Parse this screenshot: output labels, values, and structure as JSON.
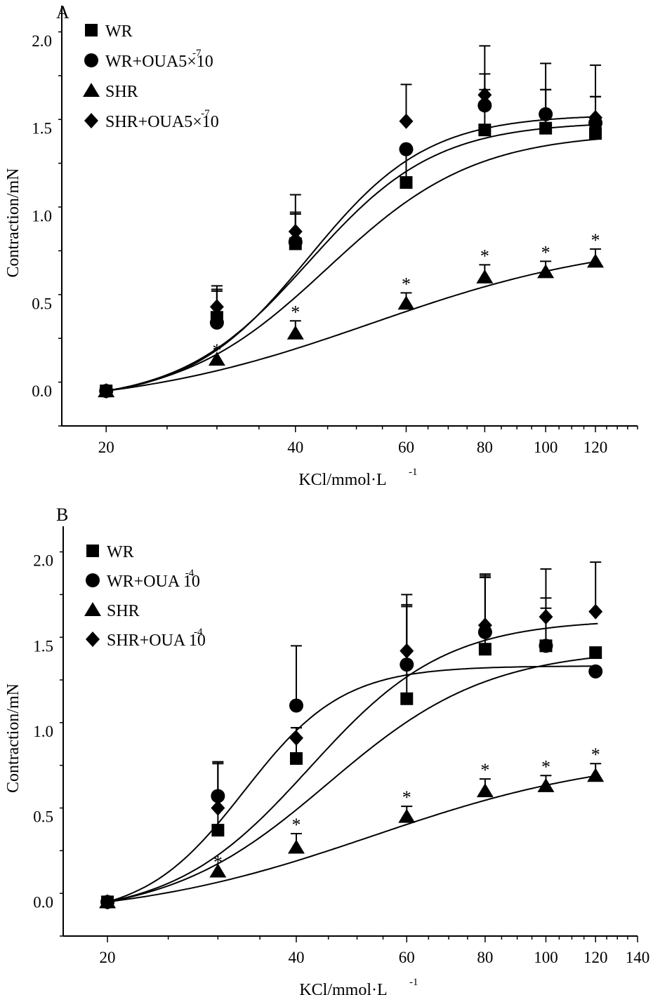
{
  "chart_data": [
    {
      "panel": "A",
      "type": "scatter",
      "xscale": "log",
      "xlabel": "KCl/mmol·L",
      "xlabel_sup": "-1",
      "ylabel": "Contraction/mN",
      "xlim": [
        17,
        140
      ],
      "ylim": [
        -0.2,
        2.2
      ],
      "xticks": [
        20,
        40,
        60,
        80,
        100,
        120
      ],
      "xtick_labels": [
        "20",
        "40",
        "60",
        "80",
        "100",
        "120"
      ],
      "yticks": [
        0.0,
        0.5,
        1.0,
        1.5,
        2.0
      ],
      "ytick_labels": [
        "0.0",
        "0.5",
        "1.0",
        "1.5",
        "2.0"
      ],
      "legend_position": "top-left",
      "series": [
        {
          "name": "WR",
          "legend_base": "WR",
          "legend_sup": "",
          "marker": "square",
          "x": [
            20,
            30,
            40,
            60,
            80,
            100,
            120
          ],
          "y": [
            0.0,
            0.42,
            0.84,
            1.19,
            1.49,
            1.5,
            1.47
          ],
          "err": [
            0,
            0.15,
            0.17,
            0.19,
            0.23,
            0.22,
            0.21
          ],
          "fit": {
            "bottom": 0.0,
            "top": 1.55,
            "ec50": 45,
            "hill": 3.7
          }
        },
        {
          "name": "WR+OUA5×10-7",
          "legend_base": "WR+OUA5×10",
          "legend_sup": "-7",
          "marker": "circle",
          "x": [
            20,
            30,
            40,
            60,
            80,
            100,
            120
          ],
          "y": [
            0.0,
            0.39,
            0.85,
            1.38,
            1.63,
            1.58,
            1.53
          ],
          "err": [
            0,
            0.19,
            0.17,
            0.0,
            0.18,
            0.14,
            0.15
          ],
          "fit": {
            "bottom": 0.0,
            "top": 1.6,
            "ec50": 42,
            "hill": 4.3
          }
        },
        {
          "name": "SHR",
          "legend_base": "SHR",
          "legend_sup": "",
          "marker": "triangle",
          "x": [
            20,
            30,
            40,
            60,
            80,
            100,
            120
          ],
          "y": [
            0.0,
            0.18,
            0.33,
            0.5,
            0.65,
            0.68,
            0.74
          ],
          "err": [
            0,
            0,
            0.07,
            0.06,
            0.07,
            0.06,
            0.07
          ],
          "star": [
            false,
            true,
            true,
            true,
            true,
            true,
            true
          ],
          "fit": {
            "bottom": 0.0,
            "top": 0.98,
            "ec50": 53,
            "hill": 2.2
          }
        },
        {
          "name": "SHR+OUA5×10-7",
          "legend_base": "SHR+OUA5×10",
          "legend_sup": "-7",
          "marker": "diamond",
          "x": [
            20,
            30,
            40,
            60,
            80,
            100,
            120
          ],
          "y": [
            0.0,
            0.48,
            0.91,
            1.54,
            1.69,
            1.58,
            1.56
          ],
          "err": [
            0,
            0.12,
            0.21,
            0.21,
            0.28,
            0.29,
            0.3
          ],
          "fit": {
            "bottom": 0.0,
            "top": 1.63,
            "ec50": 42,
            "hill": 4.6
          }
        }
      ],
      "annotation": "*"
    },
    {
      "panel": "B",
      "type": "scatter",
      "xscale": "log",
      "xlabel": "KCl/mmol·L",
      "xlabel_sup": "-1",
      "ylabel": "Contraction/mN",
      "xlim": [
        17,
        140
      ],
      "ylim": [
        -0.2,
        2.2
      ],
      "xticks": [
        20,
        40,
        60,
        80,
        100,
        120,
        140
      ],
      "xtick_labels": [
        "20",
        "40",
        "60",
        "80",
        "100",
        "120",
        "140"
      ],
      "yticks": [
        0.0,
        0.5,
        1.0,
        1.5,
        2.0
      ],
      "ytick_labels": [
        "0.0",
        "0.5",
        "1.0",
        "1.5",
        "2.0"
      ],
      "legend_position": "top-left",
      "series": [
        {
          "name": "WR",
          "legend_base": "WR",
          "legend_sup": "",
          "marker": "square",
          "x": [
            20,
            30,
            40,
            60,
            80,
            100,
            120
          ],
          "y": [
            0.0,
            0.42,
            0.84,
            1.19,
            1.48,
            1.5,
            1.46
          ],
          "err": [
            0,
            0.4,
            0.18,
            0.54,
            0.42,
            0.28,
            0.0
          ],
          "fit": {
            "bottom": 0.0,
            "top": 1.58,
            "ec50": 45,
            "hill": 3.4
          }
        },
        {
          "name": "WR+OUA 10-4",
          "legend_base": "WR+OUA 10",
          "legend_sup": "-4",
          "marker": "circle",
          "x": [
            20,
            30,
            40,
            60,
            80,
            100,
            120
          ],
          "y": [
            0.0,
            0.62,
            1.15,
            1.39,
            1.58,
            1.5,
            1.35
          ],
          "err": [
            0,
            0.2,
            0.35,
            0.35,
            0.33,
            0.22,
            0.0
          ],
          "fit": {
            "bottom": 0.0,
            "top": 1.47,
            "ec50": 33,
            "hill": 5.5
          }
        },
        {
          "name": "SHR",
          "legend_base": "SHR",
          "legend_sup": "",
          "marker": "triangle",
          "x": [
            20,
            30,
            40,
            60,
            80,
            100,
            120
          ],
          "y": [
            0.0,
            0.18,
            0.32,
            0.5,
            0.65,
            0.68,
            0.74
          ],
          "err": [
            0,
            0,
            0.08,
            0.06,
            0.07,
            0.06,
            0.07
          ],
          "star": [
            false,
            true,
            true,
            true,
            true,
            true,
            true
          ],
          "fit": {
            "bottom": 0.0,
            "top": 0.98,
            "ec50": 53,
            "hill": 2.2
          }
        },
        {
          "name": "SHR+OUA 10-4",
          "legend_base": "SHR+OUA 10",
          "legend_sup": "-4",
          "marker": "diamond",
          "x": [
            20,
            30,
            40,
            60,
            80,
            100,
            120
          ],
          "y": [
            0.0,
            0.55,
            0.96,
            1.47,
            1.62,
            1.67,
            1.7
          ],
          "err": [
            0,
            0.26,
            0.06,
            0.33,
            0.3,
            0.28,
            0.29
          ],
          "fit": {
            "bottom": 0.0,
            "top": 1.74,
            "ec50": 42,
            "hill": 4.0
          }
        }
      ],
      "annotation": "*"
    }
  ]
}
